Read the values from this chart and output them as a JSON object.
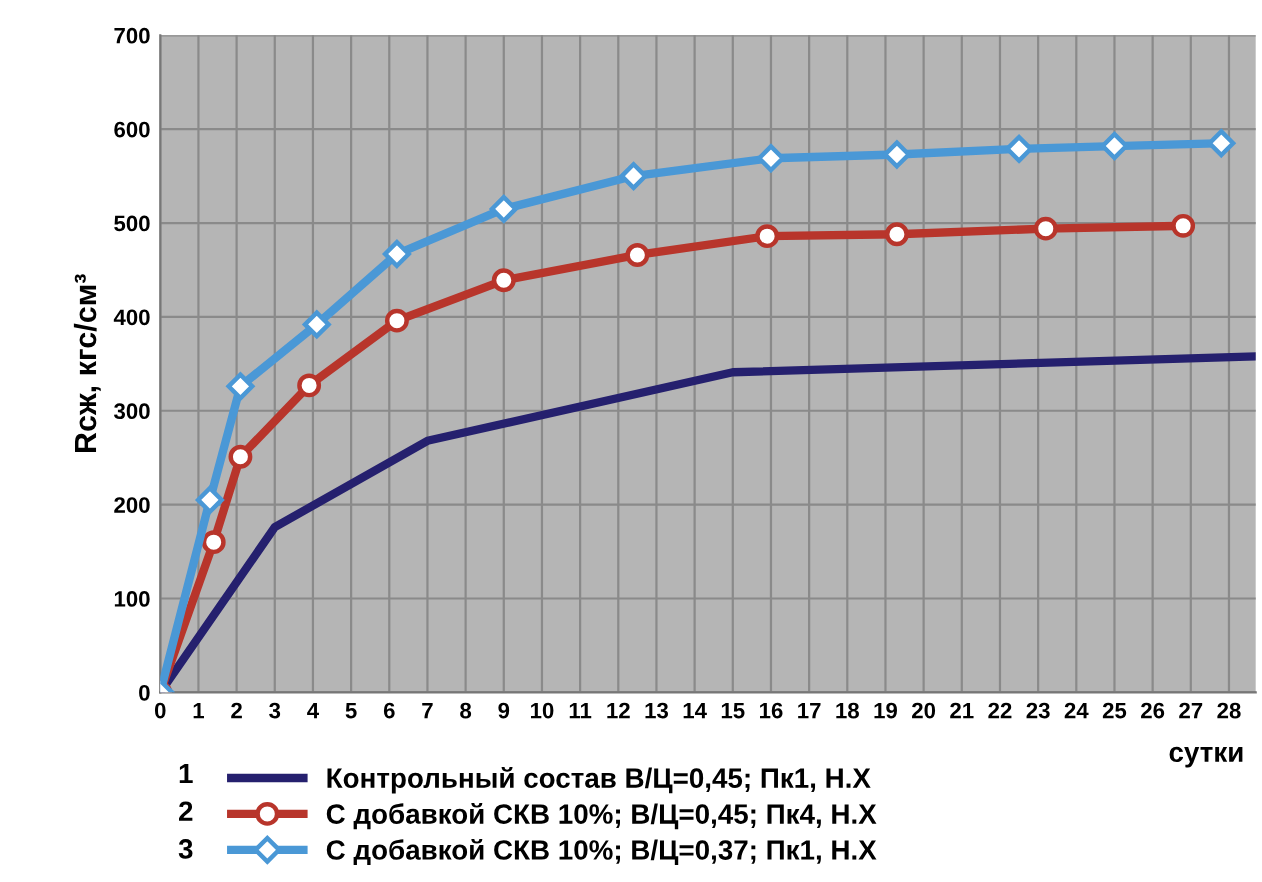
{
  "chart_data": {
    "type": "line",
    "xlabel": "сутки",
    "ylabel": "Rсж, кгс/см³",
    "xlim": [
      0,
      28.7
    ],
    "xticks": [
      0,
      1,
      2,
      3,
      4,
      5,
      6,
      7,
      8,
      9,
      10,
      11,
      12,
      13,
      14,
      15,
      16,
      17,
      18,
      19,
      20,
      21,
      22,
      23,
      24,
      25,
      26,
      27,
      28
    ],
    "ylim": [
      0,
      700
    ],
    "yticks": [
      0,
      100,
      200,
      300,
      400,
      500,
      600,
      700
    ],
    "grid": true,
    "legend": "bottom",
    "line_style": "solid",
    "annotations": [
      "1",
      "2",
      "3"
    ],
    "series": [
      {
        "name": "Контрольный состав В/Ц=0,45; Пк1, Н.Х",
        "color": "#25206e",
        "marker": "none",
        "x": [
          0,
          3,
          7,
          15,
          28.7
        ],
        "values": [
          0,
          176,
          268,
          341,
          358
        ]
      },
      {
        "name": "С добавкой СКВ 10%; В/Ц=0,45; Пк4, Н.Х",
        "color": "#b8352b",
        "marker": "circle",
        "x": [
          0,
          1.4,
          2.1,
          3.9,
          6.2,
          9,
          12.5,
          15.9,
          19.3,
          23.2,
          26.8
        ],
        "values": [
          0,
          160,
          251,
          327,
          396,
          439,
          466,
          486,
          488,
          494,
          497
        ]
      },
      {
        "name": "С добавкой СКВ 10%; В/Ц=0,37; Пк1, Н.Х",
        "color": "#4a98d6",
        "marker": "diamond",
        "x": [
          0,
          1.3,
          2.1,
          4.1,
          6.2,
          9,
          12.4,
          16,
          19.3,
          22.5,
          25,
          27.8
        ],
        "values": [
          0,
          205,
          326,
          392,
          467,
          515,
          550,
          569,
          573,
          579,
          582,
          585
        ]
      }
    ]
  }
}
